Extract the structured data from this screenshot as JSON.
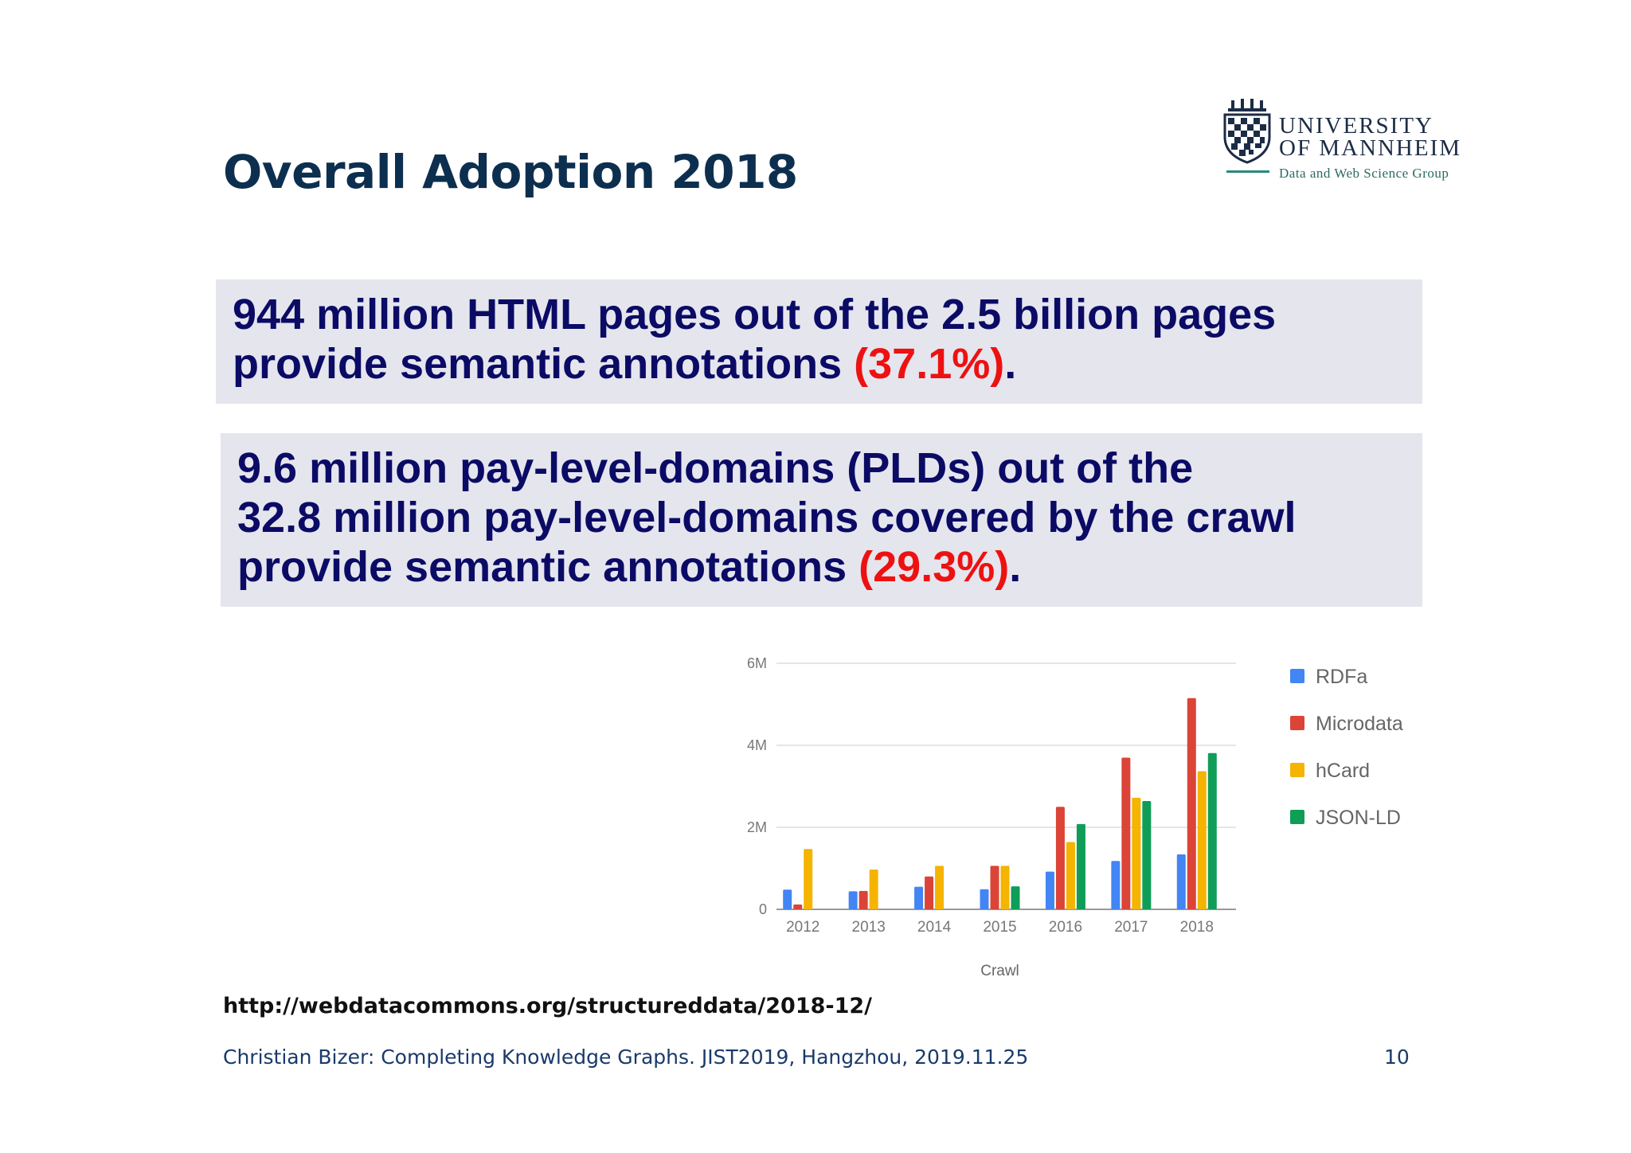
{
  "slide": {
    "title": "Overall Adoption 2018",
    "logo": {
      "line1": "UNIVERSITY",
      "line2": "OF MANNHEIM",
      "subline": "Data and Web Science Group"
    },
    "box1": {
      "line1": "944 million HTML pages out of the 2.5 billion pages",
      "line2_text": "provide semantic annotations ",
      "line2_highlight": "(37.1%)",
      "line2_end": "."
    },
    "box2": {
      "line1": "9.6 million pay-level-domains (PLDs) out of the",
      "line2": "32.8 million pay-level-domains covered by the crawl",
      "line3_text": "provide semantic annotations ",
      "line3_highlight": "(29.3%)",
      "line3_end": "."
    },
    "url": "http://webdatacommons.org/structureddata/2018-12/",
    "footer": "Christian Bizer: Completing Knowledge Graphs. JIST2019, Hangzhou, 2019.11.25",
    "page_number": "10",
    "colors": {
      "highlight": "#ee1111",
      "text": "#0b0b66",
      "box_bg": "#e5e5ee",
      "title": "#0d2f4f"
    }
  },
  "chart_data": {
    "type": "bar",
    "xlabel": "Crawl",
    "ylabel": "",
    "categories": [
      "2012",
      "2013",
      "2014",
      "2015",
      "2016",
      "2017",
      "2018"
    ],
    "ylim": [
      0,
      6000000
    ],
    "yticks": [
      0,
      2000000,
      4000000,
      6000000
    ],
    "ytick_labels": [
      "0",
      "2M",
      "4M",
      "6M"
    ],
    "grid": true,
    "legend_position": "right",
    "series": [
      {
        "name": "RDFa",
        "color": "#4285f4",
        "values": [
          480000,
          440000,
          550000,
          490000,
          920000,
          1180000,
          1340000
        ]
      },
      {
        "name": "Microdata",
        "color": "#db4437",
        "values": [
          120000,
          450000,
          800000,
          1060000,
          2500000,
          3700000,
          5150000
        ]
      },
      {
        "name": "hCard",
        "color": "#f4b400",
        "values": [
          1470000,
          970000,
          1060000,
          1060000,
          1640000,
          2720000,
          3370000
        ]
      },
      {
        "name": "JSON-LD",
        "color": "#0f9d58",
        "values": [
          0,
          0,
          0,
          560000,
          2080000,
          2640000,
          3810000
        ]
      }
    ]
  }
}
